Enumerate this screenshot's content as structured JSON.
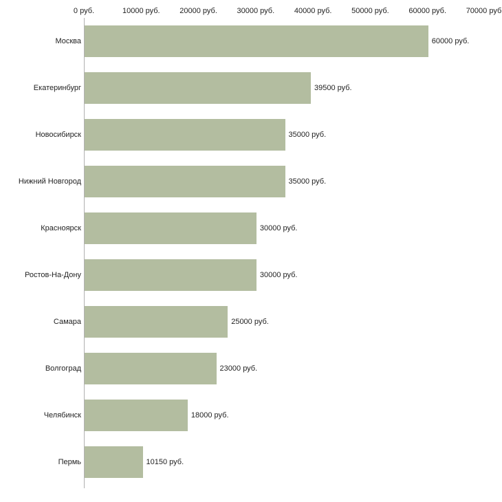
{
  "chart_data": {
    "type": "bar",
    "orientation": "horizontal",
    "title": "",
    "xlabel": "",
    "ylabel": "",
    "categories": [
      "Москва",
      "Екатеринбург",
      "Новосибирск",
      "Нижний Новгород",
      "Красноярск",
      "Ростов-На-Дону",
      "Самара",
      "Волгоград",
      "Челябинск",
      "Пермь"
    ],
    "values": [
      60000,
      39500,
      35000,
      35000,
      30000,
      30000,
      25000,
      23000,
      18000,
      10150
    ],
    "value_labels": [
      "60000 руб.",
      "39500 руб.",
      "35000 руб.",
      "35000 руб.",
      "30000 руб.",
      "30000 руб.",
      "25000 руб.",
      "23000 руб.",
      "18000 руб.",
      "10150 руб."
    ],
    "x_ticks": [
      0,
      10000,
      20000,
      30000,
      40000,
      50000,
      60000,
      70000
    ],
    "x_tick_labels": [
      "0 руб.",
      "10000 руб.",
      "20000 руб.",
      "30000 руб.",
      "40000 руб.",
      "50000 руб.",
      "60000 руб.",
      "70000 руб."
    ],
    "xlim": [
      0,
      70000
    ],
    "grid": false,
    "legend": "none",
    "bar_color": "#b3bda0",
    "axis_color": "#b0b0b0",
    "text_color": "#222222"
  }
}
